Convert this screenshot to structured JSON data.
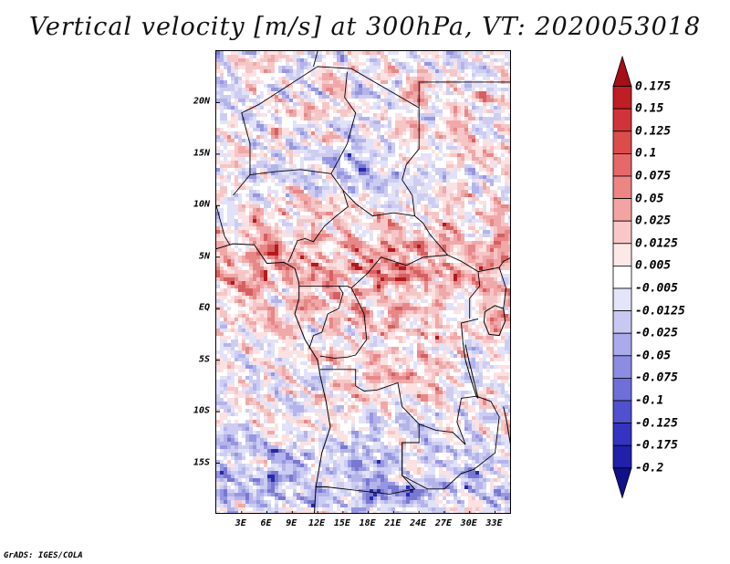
{
  "title": "Vertical velocity [m/s] at 300hPa, VT: 2020053018",
  "footer": "GrADS: IGES/COLA",
  "map": {
    "variable": "Vertical velocity",
    "units": "m/s",
    "level": "300hPa",
    "valid_time": "2020053018",
    "lat_range": [
      -20,
      25
    ],
    "lon_range": [
      0,
      35
    ],
    "lat_ticks": [
      {
        "value": 20,
        "label": "20N"
      },
      {
        "value": 15,
        "label": "15N"
      },
      {
        "value": 10,
        "label": "10N"
      },
      {
        "value": 5,
        "label": "5N"
      },
      {
        "value": 0,
        "label": "EQ"
      },
      {
        "value": -5,
        "label": "5S"
      },
      {
        "value": -10,
        "label": "10S"
      },
      {
        "value": -15,
        "label": "15S"
      }
    ],
    "lon_ticks": [
      {
        "value": 3,
        "label": "3E"
      },
      {
        "value": 6,
        "label": "6E"
      },
      {
        "value": 9,
        "label": "9E"
      },
      {
        "value": 12,
        "label": "12E"
      },
      {
        "value": 15,
        "label": "15E"
      },
      {
        "value": 18,
        "label": "18E"
      },
      {
        "value": 21,
        "label": "21E"
      },
      {
        "value": 24,
        "label": "24E"
      },
      {
        "value": 27,
        "label": "27E"
      },
      {
        "value": 30,
        "label": "30E"
      },
      {
        "value": 33,
        "label": "33E"
      }
    ]
  },
  "colorbar": {
    "labels": [
      "0.175",
      "0.15",
      "0.125",
      "0.1",
      "0.075",
      "0.05",
      "0.025",
      "0.0125",
      "0.005",
      "-0.005",
      "-0.0125",
      "-0.025",
      "-0.05",
      "-0.075",
      "-0.1",
      "-0.125",
      "-0.175",
      "-0.2"
    ],
    "colors": [
      "#a50f15",
      "#be1e24",
      "#d0343a",
      "#dd4c4c",
      "#e66868",
      "#ee8585",
      "#f4a3a3",
      "#f9c7c7",
      "#fde8e8",
      "#ffffff",
      "#e4e4fb",
      "#c8c8f3",
      "#aaaaec",
      "#8c8ce3",
      "#6f6fd9",
      "#5151cd",
      "#3434c0",
      "#2020aa",
      "#10108a"
    ]
  }
}
